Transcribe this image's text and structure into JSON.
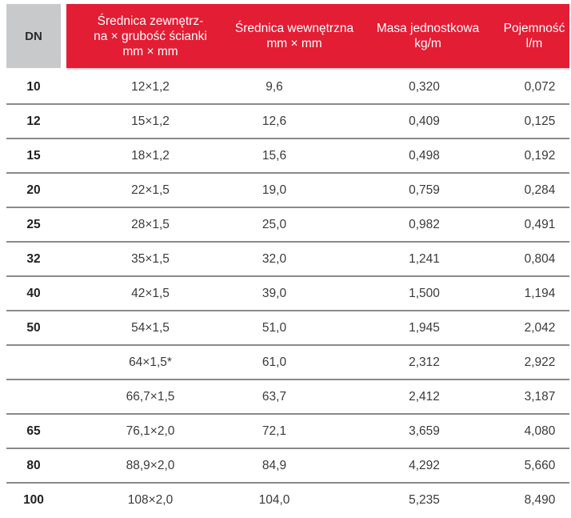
{
  "table": {
    "colors": {
      "header_red": "#e31d33",
      "header_dn_grey": "#c8c9cb",
      "divider": "#8a8a8a"
    },
    "headers": {
      "dn": "DN",
      "outer": {
        "line1": "Średnica zewnętrz-",
        "line2": "na × grubość ścianki",
        "line3": "mm × mm"
      },
      "inner": {
        "line1": "Średnica wewnętrzna",
        "line2": "mm × mm"
      },
      "mass": {
        "line1": "Masa jednostkowa",
        "line2": "kg/m"
      },
      "capacity": {
        "line1": "Pojemność",
        "line2": "l/m"
      }
    },
    "rows": [
      {
        "dn": "10",
        "outer": "12×1,2",
        "inner": "9,6",
        "mass": "0,320",
        "capacity": "0,072"
      },
      {
        "dn": "12",
        "outer": "15×1,2",
        "inner": "12,6",
        "mass": "0,409",
        "capacity": "0,125"
      },
      {
        "dn": "15",
        "outer": "18×1,2",
        "inner": "15,6",
        "mass": "0,498",
        "capacity": "0,192"
      },
      {
        "dn": "20",
        "outer": "22×1,5",
        "inner": "19,0",
        "mass": "0,759",
        "capacity": "0,284"
      },
      {
        "dn": "25",
        "outer": "28×1,5",
        "inner": "25,0",
        "mass": "0,982",
        "capacity": "0,491"
      },
      {
        "dn": "32",
        "outer": "35×1,5",
        "inner": "32,0",
        "mass": "1,241",
        "capacity": "0,804"
      },
      {
        "dn": "40",
        "outer": "42×1,5",
        "inner": "39,0",
        "mass": "1,500",
        "capacity": "1,194"
      },
      {
        "dn": "50",
        "outer": "54×1,5",
        "inner": "51,0",
        "mass": "1,945",
        "capacity": "2,042"
      },
      {
        "dn": "",
        "outer": "64×1,5*",
        "inner": "61,0",
        "mass": "2,312",
        "capacity": "2,922"
      },
      {
        "dn": "",
        "outer": "66,7×1,5",
        "inner": "63,7",
        "mass": "2,412",
        "capacity": "3,187"
      },
      {
        "dn": "65",
        "outer": "76,1×2,0",
        "inner": "72,1",
        "mass": "3,659",
        "capacity": "4,080"
      },
      {
        "dn": "80",
        "outer": "88,9×2,0",
        "inner": "84,9",
        "mass": "4,292",
        "capacity": "5,660"
      },
      {
        "dn": "100",
        "outer": "108×2,0",
        "inner": "104,0",
        "mass": "5,235",
        "capacity": "8,490"
      }
    ]
  }
}
